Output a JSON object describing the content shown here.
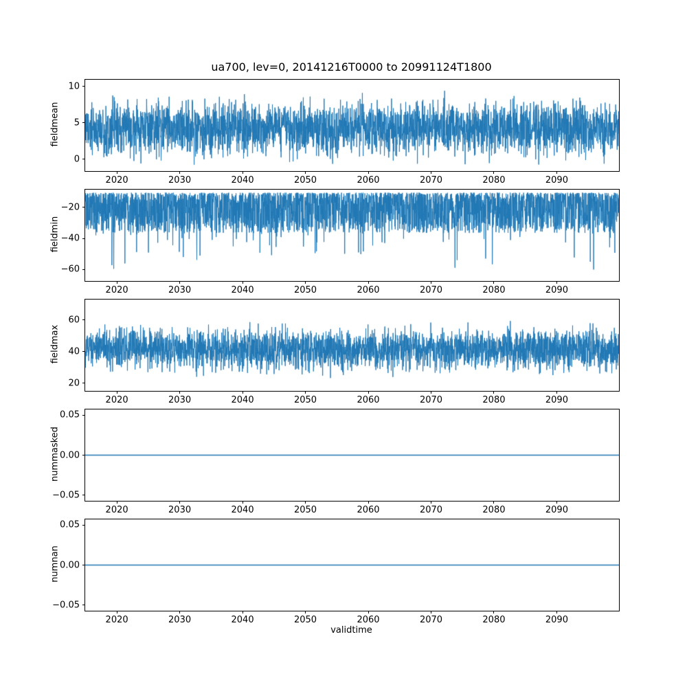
{
  "figure": {
    "title": "ua700, lev=0, 20141216T0000 to 20991124T1800",
    "xlabel": "validtime",
    "line_color": "#1f77b4",
    "background": "#ffffff",
    "xlim": [
      2014.96,
      2099.9
    ],
    "xticks": [
      2020,
      2030,
      2040,
      2050,
      2060,
      2070,
      2080,
      2090
    ]
  },
  "chart_data": [
    {
      "type": "line",
      "title": "ua700, lev=0, 20141216T0000 to 20991124T1800",
      "ylabel": "fieldmean",
      "xlim": [
        2014.96,
        2099.9
      ],
      "ylim": [
        -1.6,
        10.9
      ],
      "yticks": [
        {
          "v": 10,
          "label": "10"
        },
        {
          "v": 5,
          "label": "5"
        },
        {
          "v": 0,
          "label": "0"
        }
      ],
      "legend": "none",
      "grid": false,
      "series": {
        "name": "fieldmean",
        "kind": "gauss",
        "mean": 4.2,
        "std": 1.75,
        "min": -1.3,
        "max": 10.4,
        "spike_p": 0.004,
        "spike": 3,
        "description": "dense 6-hourly noise series 2014-2099; mean ≈ 4.2, bulk between 1 and 7, extremes ≈ −1.3 to 10.4"
      }
    },
    {
      "type": "line",
      "ylabel": "fieldmin",
      "xlim": [
        2014.96,
        2099.9
      ],
      "ylim": [
        -67.5,
        -8.5
      ],
      "yticks": [
        {
          "v": -20,
          "label": "−20"
        },
        {
          "v": -40,
          "label": "−40"
        },
        {
          "v": -60,
          "label": "−60"
        }
      ],
      "legend": "none",
      "grid": false,
      "series": {
        "name": "fieldmin",
        "kind": "skew-down",
        "top": -10.5,
        "spread": 26,
        "spike_p": 0.05,
        "spike": 26,
        "min": -66,
        "description": "dense band ≈ −11 to −40 with frequent downward spikes reaching ≈ −65"
      }
    },
    {
      "type": "line",
      "ylabel": "fieldmax",
      "xlim": [
        2014.96,
        2099.9
      ],
      "ylim": [
        15,
        73
      ],
      "yticks": [
        {
          "v": 60,
          "label": "60"
        },
        {
          "v": 40,
          "label": "40"
        },
        {
          "v": 20,
          "label": "20"
        }
      ],
      "legend": "none",
      "grid": false,
      "series": {
        "name": "fieldmax",
        "kind": "gauss",
        "mean": 41.5,
        "std": 6.2,
        "min": 21,
        "max": 70,
        "spike_p": 0.004,
        "spike": 9,
        "description": "dense band ≈ 28 to 58 centred near 42, rare peaks to ≈ 70, rare dips to ≈ 21"
      }
    },
    {
      "type": "line",
      "ylabel": "nummasked",
      "xlim": [
        2014.96,
        2099.9
      ],
      "ylim": [
        -0.057,
        0.057
      ],
      "yticks": [
        {
          "v": 0.05,
          "label": "0.05"
        },
        {
          "v": 0,
          "label": "0.00"
        },
        {
          "v": -0.05,
          "label": "−0.05"
        }
      ],
      "legend": "none",
      "grid": false,
      "series": {
        "name": "nummasked",
        "kind": "flat",
        "value": 0,
        "description": "constant 0.00 for the entire period"
      }
    },
    {
      "type": "line",
      "ylabel": "numnan",
      "xlabel": "validtime",
      "xlim": [
        2014.96,
        2099.9
      ],
      "ylim": [
        -0.057,
        0.057
      ],
      "yticks": [
        {
          "v": 0.05,
          "label": "0.05"
        },
        {
          "v": 0,
          "label": "0.00"
        },
        {
          "v": -0.05,
          "label": "−0.05"
        }
      ],
      "legend": "none",
      "grid": false,
      "series": {
        "name": "numnan",
        "kind": "flat",
        "value": 0,
        "description": "constant 0.00 for the entire period"
      }
    }
  ]
}
